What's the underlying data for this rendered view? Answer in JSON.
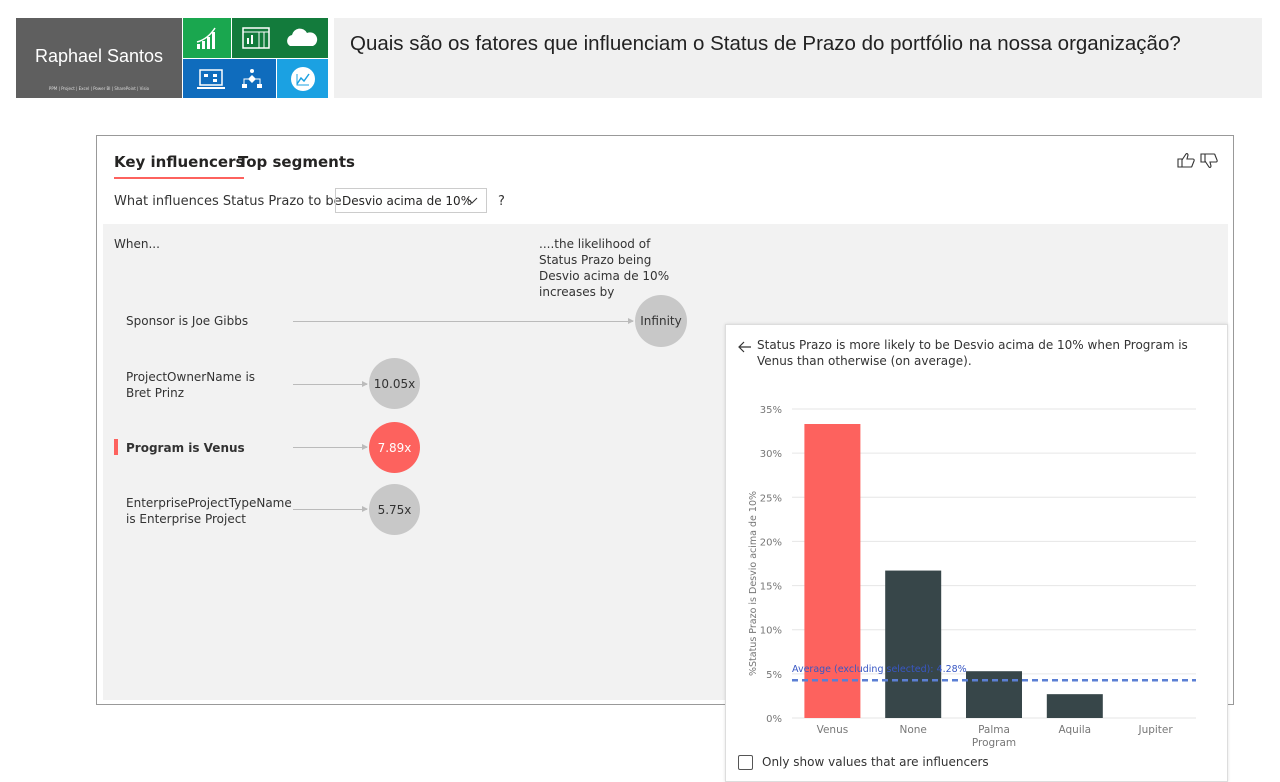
{
  "banner": {
    "name": "Raphael Santos",
    "subtitle": "PPM | Project | Excel | Power BI | SharePoint | Visio",
    "tiles": [
      "growth-chart-icon",
      "spreadsheet-icon",
      "cloud-icon",
      "flow-laptop-icon",
      "hierarchy-icon",
      "line-chart-icon"
    ],
    "question": "Quais são os fatores que influenciam o Status de Prazo do portfólio na nossa organização?"
  },
  "visual": {
    "tabs": [
      {
        "label": "Key influencers",
        "active": true
      },
      {
        "label": "Top segments",
        "active": false
      }
    ],
    "question_label": "What influences Status Prazo to be",
    "selected_value": "Desvio acima de 10%",
    "help": "?",
    "when_label": "When...",
    "likelihood_label": "....the likelihood of Status Prazo being Desvio acima de 10% increases by",
    "influencers": [
      {
        "label": "Sponsor is Joe Gibbs",
        "value": "Infinity",
        "selected": false
      },
      {
        "label": "ProjectOwnerName is Bret Prinz",
        "value": "10.05x",
        "selected": false
      },
      {
        "label": "Program is Venus",
        "value": "7.89x",
        "selected": true
      },
      {
        "label": "EnterpriseProjectTypeName is Enterprise Project",
        "value": "5.75x",
        "selected": false
      }
    ],
    "detail_text": "Status Prazo is more likely to be Desvio acima de 10% when Program is Venus than otherwise (on average).",
    "checkbox_label": "Only show values that are influencers",
    "checkbox_checked": false,
    "colors": {
      "accent": "#fd625e",
      "bar": "#374649",
      "average": "#5b7fd4",
      "bubble": "#c8c8c8"
    }
  },
  "chart_data": {
    "type": "bar",
    "categories": [
      "Venus",
      "None",
      "Palma Program",
      "Aquila",
      "Jupiter"
    ],
    "values": [
      33.3,
      16.7,
      5.3,
      2.7,
      0
    ],
    "highlight": "Venus",
    "ylabel": "%Status Prazo is Desvio acima de 10%",
    "yticks": [
      "0%",
      "5%",
      "10%",
      "15%",
      "20%",
      "25%",
      "30%",
      "35%"
    ],
    "ylim": [
      0,
      35
    ],
    "average": {
      "label": "Average (excluding selected): 4.28%",
      "value": 4.28
    },
    "grid": true
  }
}
